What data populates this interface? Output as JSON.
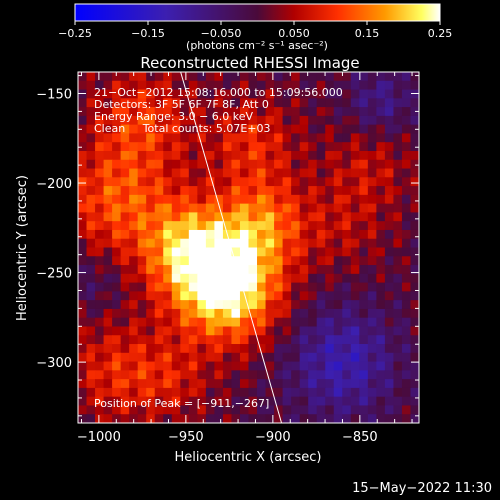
{
  "chart_data": {
    "type": "heatmap",
    "title": "Reconstructed RHESSI Image",
    "xlabel": "Heliocentric X (arcsec)",
    "ylabel": "Heliocentric Y (arcsec)",
    "xlim": [
      -1012,
      -816
    ],
    "ylim": [
      -334,
      -138
    ],
    "x_ticks": [
      {
        "value": -1000,
        "label": "−1000"
      },
      {
        "value": -950,
        "label": "−950"
      },
      {
        "value": -900,
        "label": "−900"
      },
      {
        "value": -850,
        "label": "−850"
      }
    ],
    "y_ticks": [
      {
        "value": -150,
        "label": "−150"
      },
      {
        "value": -200,
        "label": "−200"
      },
      {
        "value": -250,
        "label": "−250"
      },
      {
        "value": -300,
        "label": "−300"
      }
    ],
    "colorbar": {
      "min": -0.25,
      "max": 0.25,
      "unit": "(photons cm⁻² s⁻¹ asec⁻²)",
      "ticks": [
        {
          "value": -0.25,
          "label": "−0.25"
        },
        {
          "value": -0.15,
          "label": "−0.15"
        },
        {
          "value": -0.05,
          "label": "−0.050"
        },
        {
          "value": 0.05,
          "label": "0.050"
        },
        {
          "value": 0.15,
          "label": "0.15"
        },
        {
          "value": 0.25,
          "label": "0.25"
        }
      ]
    },
    "annotations": [
      "21−Oct−2012 15:08:16.000 to 15:09:56.000",
      "Detectors: 3F 5F 6F 7F 8F, Att 0",
      "Energy Range: 3.0 − 6.0 keV",
      "Clean     Total counts: 5.07E+03"
    ],
    "peak_label": "Position of Peak = [−911,−267]",
    "peak": [
      -911,
      -267
    ],
    "limb_line": [
      [
        -953,
        -138
      ],
      [
        -895,
        -334
      ]
    ],
    "sources": [
      {
        "x": -926,
        "y": -258,
        "amp": 0.26,
        "sigma": 21
      },
      {
        "x": -948,
        "y": -236,
        "amp": 0.17,
        "sigma": 19
      },
      {
        "x": -905,
        "y": -222,
        "amp": 0.13,
        "sigma": 17
      },
      {
        "x": -990,
        "y": -210,
        "amp": 0.12,
        "sigma": 22
      },
      {
        "x": -975,
        "y": -165,
        "amp": 0.1,
        "sigma": 20
      },
      {
        "x": -912,
        "y": -178,
        "amp": 0.09,
        "sigma": 18
      },
      {
        "x": -990,
        "y": -305,
        "amp": 0.09,
        "sigma": 20
      },
      {
        "x": -957,
        "y": -310,
        "amp": 0.06,
        "sigma": 16
      },
      {
        "x": -845,
        "y": -190,
        "amp": 0.06,
        "sigma": 18
      },
      {
        "x": -860,
        "y": -225,
        "amp": 0.05,
        "sigma": 18
      },
      {
        "x": -860,
        "y": -300,
        "amp": -0.12,
        "sigma": 22
      },
      {
        "x": -838,
        "y": -155,
        "amp": -0.08,
        "sigma": 14
      },
      {
        "x": -1002,
        "y": -255,
        "amp": -0.04,
        "sigma": 12
      }
    ]
  },
  "footer": {
    "timestamp": "15−May−2022 11:30"
  }
}
